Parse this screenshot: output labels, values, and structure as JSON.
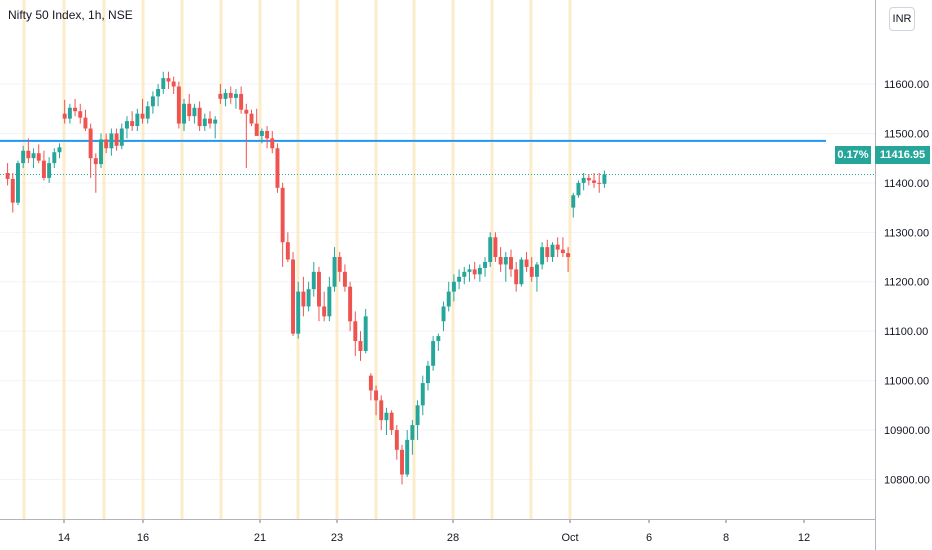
{
  "header": {
    "title": "Nifty 50 Index, 1h, NSE",
    "currency": "INR"
  },
  "last": {
    "change_pct": "0.17%",
    "price": "11416.95",
    "price_value": 11416.95
  },
  "colors": {
    "up": "#26a69a",
    "down": "#ef5350",
    "hline": "#2196f3",
    "session": "#fbe6b8",
    "grid": "#f0f3fa",
    "axis_text": "#131722"
  },
  "chart_data": {
    "type": "candlestick",
    "title": "Nifty 50 Index, 1h, NSE",
    "ylim": [
      10720,
      11770
    ],
    "y_ticks": [
      11600,
      11500,
      11400,
      11300,
      11200,
      11100,
      11000,
      10900,
      10800
    ],
    "y_tick_labels": [
      "11600.00",
      "11500.00",
      "11400.00",
      "11300.00",
      "11200.00",
      "11100.00",
      "11000.00",
      "10900.00",
      "10800.00"
    ],
    "x_ticks": [
      "14",
      "16",
      "21",
      "23",
      "28",
      "Oct",
      "6",
      "8",
      "12"
    ],
    "horizontal_line": 11485,
    "candles": [
      [
        11420,
        11440,
        11395,
        11408
      ],
      [
        11408,
        11420,
        11340,
        11360
      ],
      [
        11360,
        11445,
        11355,
        11440
      ],
      [
        11440,
        11475,
        11430,
        11465
      ],
      [
        11465,
        11490,
        11440,
        11450
      ],
      [
        11450,
        11470,
        11430,
        11460
      ],
      [
        11460,
        11478,
        11440,
        11445
      ],
      [
        11445,
        11465,
        11405,
        11410
      ],
      [
        11410,
        11452,
        11400,
        11440
      ],
      [
        11440,
        11470,
        11430,
        11462
      ],
      [
        11462,
        11480,
        11450,
        11472
      ],
      [
        11540,
        11568,
        11520,
        11530
      ],
      [
        11530,
        11560,
        11520,
        11552
      ],
      [
        11552,
        11570,
        11535,
        11545
      ],
      [
        11545,
        11560,
        11520,
        11532
      ],
      [
        11532,
        11548,
        11505,
        11510
      ],
      [
        11510,
        11520,
        11410,
        11450
      ],
      [
        11450,
        11460,
        11380,
        11438
      ],
      [
        11438,
        11500,
        11430,
        11488
      ],
      [
        11488,
        11500,
        11460,
        11470
      ],
      [
        11470,
        11510,
        11455,
        11500
      ],
      [
        11500,
        11510,
        11465,
        11475
      ],
      [
        11475,
        11520,
        11468,
        11510
      ],
      [
        11510,
        11535,
        11490,
        11525
      ],
      [
        11525,
        11545,
        11505,
        11515
      ],
      [
        11515,
        11550,
        11505,
        11540
      ],
      [
        11540,
        11570,
        11520,
        11530
      ],
      [
        11530,
        11565,
        11520,
        11555
      ],
      [
        11555,
        11585,
        11540,
        11575
      ],
      [
        11575,
        11600,
        11555,
        11590
      ],
      [
        11590,
        11625,
        11580,
        11612
      ],
      [
        11612,
        11625,
        11590,
        11605
      ],
      [
        11605,
        11615,
        11580,
        11595
      ],
      [
        11595,
        11605,
        11510,
        11520
      ],
      [
        11520,
        11570,
        11505,
        11560
      ],
      [
        11560,
        11580,
        11525,
        11535
      ],
      [
        11535,
        11560,
        11520,
        11552
      ],
      [
        11552,
        11565,
        11505,
        11515
      ],
      [
        11515,
        11540,
        11505,
        11530
      ],
      [
        11530,
        11545,
        11510,
        11520
      ],
      [
        11520,
        11535,
        11490,
        11528
      ],
      [
        11580,
        11600,
        11560,
        11570
      ],
      [
        11570,
        11590,
        11555,
        11582
      ],
      [
        11582,
        11595,
        11560,
        11572
      ],
      [
        11572,
        11590,
        11550,
        11580
      ],
      [
        11580,
        11595,
        11540,
        11548
      ],
      [
        11548,
        11560,
        11430,
        11540
      ],
      [
        11540,
        11548,
        11515,
        11520
      ],
      [
        11520,
        11550,
        11505,
        11495
      ],
      [
        11495,
        11510,
        11480,
        11505
      ],
      [
        11505,
        11515,
        11470,
        11490
      ],
      [
        11490,
        11505,
        11460,
        11470
      ],
      [
        11470,
        11480,
        11380,
        11390
      ],
      [
        11390,
        11400,
        11230,
        11280
      ],
      [
        11280,
        11300,
        11240,
        11245
      ],
      [
        11245,
        11260,
        11090,
        11095
      ],
      [
        11095,
        11200,
        11085,
        11180
      ],
      [
        11180,
        11210,
        11130,
        11150
      ],
      [
        11150,
        11200,
        11140,
        11185
      ],
      [
        11185,
        11240,
        11170,
        11220
      ],
      [
        11220,
        11230,
        11120,
        11150
      ],
      [
        11150,
        11180,
        11120,
        11130
      ],
      [
        11130,
        11210,
        11120,
        11190
      ],
      [
        11190,
        11270,
        11180,
        11250
      ],
      [
        11250,
        11260,
        11200,
        11220
      ],
      [
        11220,
        11235,
        11180,
        11190
      ],
      [
        11190,
        11200,
        11100,
        11120
      ],
      [
        11120,
        11140,
        11050,
        11080
      ],
      [
        11080,
        11100,
        11040,
        11060
      ],
      [
        11060,
        11145,
        11055,
        11130
      ],
      [
        11010,
        11015,
        10960,
        10980
      ],
      [
        10980,
        10990,
        10930,
        10960
      ],
      [
        10960,
        10970,
        10900,
        10920
      ],
      [
        10920,
        10945,
        10890,
        10935
      ],
      [
        10935,
        10940,
        10890,
        10900
      ],
      [
        10900,
        10910,
        10840,
        10860
      ],
      [
        10860,
        10870,
        10790,
        10810
      ],
      [
        10810,
        10900,
        10805,
        10880
      ],
      [
        10880,
        10920,
        10850,
        10910
      ],
      [
        10910,
        10960,
        10880,
        10950
      ],
      [
        10950,
        11010,
        10930,
        10995
      ],
      [
        10995,
        11040,
        10980,
        11030
      ],
      [
        11030,
        11090,
        11020,
        11080
      ],
      [
        11080,
        11095,
        11060,
        11090
      ],
      [
        11120,
        11160,
        11100,
        11150
      ],
      [
        11150,
        11200,
        11140,
        11180
      ],
      [
        11180,
        11215,
        11160,
        11200
      ],
      [
        11200,
        11225,
        11185,
        11210
      ],
      [
        11210,
        11230,
        11195,
        11220
      ],
      [
        11220,
        11235,
        11200,
        11225
      ],
      [
        11225,
        11240,
        11205,
        11215
      ],
      [
        11215,
        11235,
        11200,
        11228
      ],
      [
        11228,
        11250,
        11210,
        11240
      ],
      [
        11240,
        11300,
        11230,
        11290
      ],
      [
        11290,
        11300,
        11240,
        11250
      ],
      [
        11250,
        11270,
        11220,
        11235
      ],
      [
        11235,
        11260,
        11200,
        11250
      ],
      [
        11250,
        11265,
        11210,
        11225
      ],
      [
        11225,
        11240,
        11180,
        11195
      ],
      [
        11195,
        11250,
        11190,
        11245
      ],
      [
        11245,
        11260,
        11220,
        11230
      ],
      [
        11230,
        11250,
        11200,
        11210
      ],
      [
        11210,
        11240,
        11180,
        11235
      ],
      [
        11235,
        11280,
        11225,
        11270
      ],
      [
        11270,
        11285,
        11240,
        11250
      ],
      [
        11250,
        11280,
        11240,
        11275
      ],
      [
        11275,
        11290,
        11250,
        11265
      ],
      [
        11265,
        11290,
        11250,
        11258
      ],
      [
        11258,
        11270,
        11220,
        11250
      ],
      [
        11350,
        11380,
        11330,
        11375
      ],
      [
        11375,
        11405,
        11370,
        11400
      ],
      [
        11400,
        11420,
        11385,
        11410
      ],
      [
        11410,
        11418,
        11395,
        11405
      ],
      [
        11405,
        11420,
        11390,
        11400
      ],
      [
        11400,
        11420,
        11380,
        11398
      ],
      [
        11398,
        11425,
        11390,
        11416.95
      ]
    ]
  }
}
